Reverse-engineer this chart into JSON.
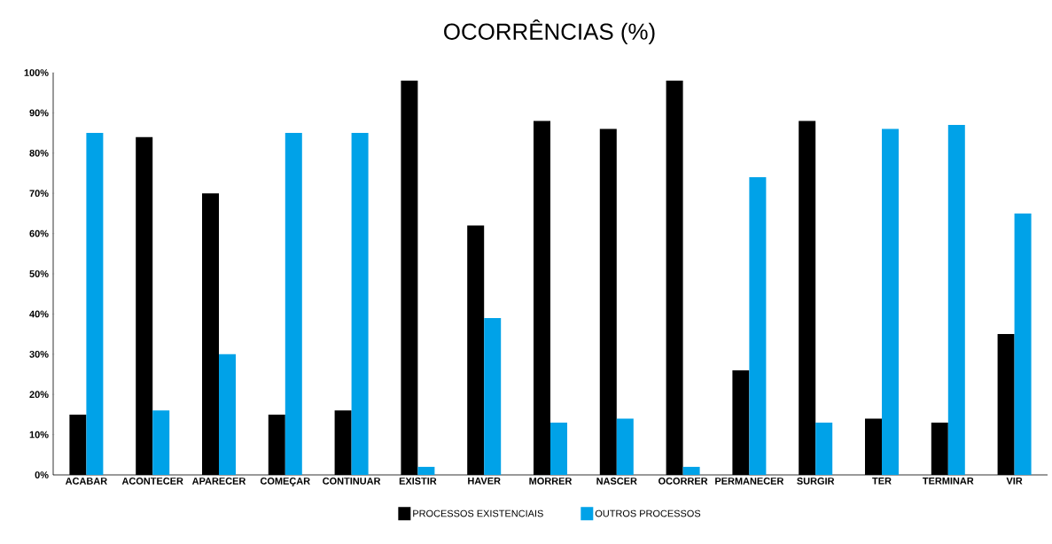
{
  "chart_data": {
    "type": "bar",
    "title": "OCORRÊNCIAS (%)",
    "categories": [
      "ACABAR",
      "ACONTECER",
      "APARECER",
      "COMEÇAR",
      "CONTINUAR",
      "EXISTIR",
      "HAVER",
      "MORRER",
      "NASCER",
      "OCORRER",
      "PERMANECER",
      "SURGIR",
      "TER",
      "TERMINAR",
      "VIR"
    ],
    "series": [
      {
        "name": "PROCESSOS EXISTENCIAIS",
        "color": "#000000",
        "values": [
          15,
          84,
          70,
          15,
          16,
          98,
          62,
          88,
          86,
          98,
          26,
          88,
          14,
          13,
          35
        ]
      },
      {
        "name": "OUTROS PROCESSOS",
        "color": "#00a2e8",
        "values": [
          85,
          16,
          30,
          85,
          85,
          2,
          39,
          13,
          14,
          2,
          74,
          13,
          86,
          87,
          65
        ]
      }
    ],
    "ylim": [
      0,
      100
    ],
    "yticks": [
      {
        "value": 0,
        "label": "0%"
      },
      {
        "value": 10,
        "label": "10%"
      },
      {
        "value": 20,
        "label": "20%"
      },
      {
        "value": 30,
        "label": "30%"
      },
      {
        "value": 40,
        "label": "40%"
      },
      {
        "value": 50,
        "label": "50%"
      },
      {
        "value": 60,
        "label": "60%"
      },
      {
        "value": 70,
        "label": "70%"
      },
      {
        "value": 80,
        "label": "80%"
      },
      {
        "value": 90,
        "label": "90%"
      },
      {
        "value": 100,
        "label": "100%"
      }
    ],
    "grid": false,
    "legend": "bottom"
  }
}
